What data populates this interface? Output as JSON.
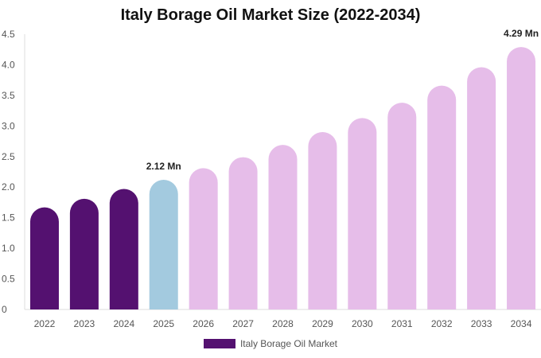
{
  "chart_data": {
    "type": "bar",
    "title": "Italy Borage Oil Market Size (2022-2034)",
    "categories": [
      "2022",
      "2023",
      "2024",
      "2025",
      "2026",
      "2027",
      "2028",
      "2029",
      "2030",
      "2031",
      "2032",
      "2033",
      "2034"
    ],
    "series": [
      {
        "name": "Italy Borage Oil Market",
        "values": [
          1.67,
          1.81,
          1.97,
          2.12,
          2.31,
          2.49,
          2.69,
          2.9,
          3.13,
          3.38,
          3.66,
          3.96,
          4.29
        ]
      }
    ],
    "ylim": [
      0,
      4.5
    ],
    "yticks": [
      "0",
      "0.5",
      "1.0",
      "1.5",
      "2.0",
      "2.5",
      "3.0",
      "3.5",
      "4.0",
      "4.5"
    ],
    "data_labels": [
      {
        "category": "2025",
        "text": "2.12 Mn"
      },
      {
        "category": "2034",
        "text": "4.29 Mn"
      }
    ],
    "bar_colors": {
      "historical": "#541170",
      "base_year": "#a3cadf",
      "forecast": "#e6bde9"
    },
    "color_by_category": [
      "historical",
      "historical",
      "historical",
      "base_year",
      "forecast",
      "forecast",
      "forecast",
      "forecast",
      "forecast",
      "forecast",
      "forecast",
      "forecast",
      "forecast"
    ],
    "legend": {
      "position": "bottom",
      "swatch_color": "#541170"
    },
    "grid": false
  }
}
